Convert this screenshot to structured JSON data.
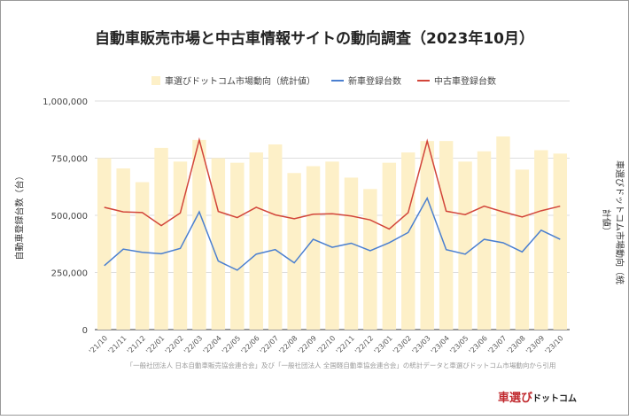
{
  "chart_data": {
    "type": "bar+line",
    "title": "自動車販売市場と中古車情報サイトの動向調査（2023年10月）",
    "ylabel": "自動車登録台数（台）",
    "y2label": "車選びドットコム市場動向（統計値）",
    "ylim": [
      0,
      1000000
    ],
    "yticks": [
      "0",
      "250,000",
      "500,000",
      "750,000",
      "1,000,000"
    ],
    "ytick_values": [
      0,
      250000,
      500000,
      750000,
      1000000
    ],
    "categories": [
      "'21/10",
      "'21/11",
      "'21/12",
      "'22/01",
      "'22/02",
      "'22/03",
      "'22/04",
      "'22/05",
      "'22/06",
      "'22/07",
      "'22/08",
      "'22/09",
      "'22/10",
      "'22/11",
      "'22/12",
      "'23/01",
      "'23/02",
      "'23/03",
      "'23/04",
      "'23/05",
      "'23/06",
      "'23/07",
      "'23/08",
      "'23/09",
      "'23/10"
    ],
    "series": [
      {
        "name": "車選びドットコム市場動向（統計値）",
        "type": "bar",
        "color": "#fdf0c8",
        "values": [
          750000,
          705000,
          645000,
          795000,
          735000,
          830000,
          750000,
          730000,
          775000,
          810000,
          685000,
          715000,
          735000,
          665000,
          615000,
          730000,
          775000,
          825000,
          825000,
          735000,
          780000,
          845000,
          700000,
          785000,
          770000
        ]
      },
      {
        "name": "新車登録台数",
        "type": "line",
        "color": "#4a7fd0",
        "values": [
          280000,
          352000,
          338000,
          332000,
          355000,
          515000,
          300000,
          260000,
          330000,
          350000,
          292000,
          395000,
          360000,
          378000,
          345000,
          380000,
          425000,
          575000,
          350000,
          330000,
          395000,
          380000,
          340000,
          435000,
          395000
        ]
      },
      {
        "name": "中古車登録台数",
        "type": "line",
        "color": "#d2453a",
        "values": [
          535000,
          515000,
          512000,
          455000,
          510000,
          830000,
          517000,
          490000,
          535000,
          502000,
          485000,
          505000,
          507000,
          497000,
          480000,
          440000,
          512000,
          825000,
          518000,
          503000,
          540000,
          515000,
          493000,
          520000,
          540000
        ]
      }
    ],
    "legend": "top",
    "grid": true
  },
  "source": "「一般社団法人 日本自動車販売協会連合会」及び「一般社団法人 全国軽自動車協会連合会」の統計データと車選びドットコム市場動向から引用",
  "logo": {
    "main": "車選び",
    "sub": "ドットコム"
  }
}
